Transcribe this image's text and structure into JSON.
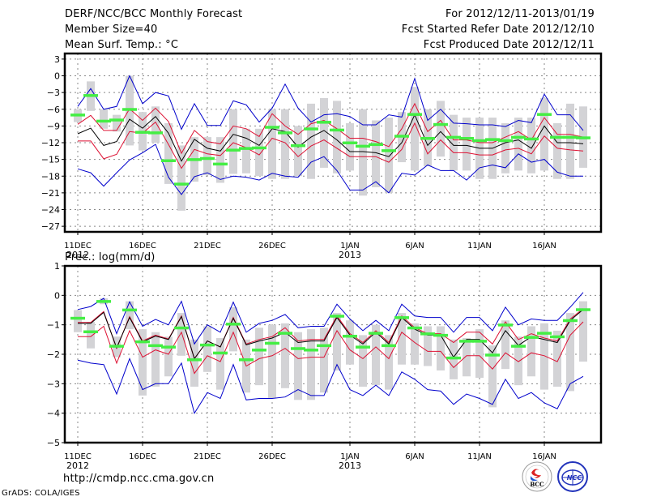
{
  "header": {
    "title": "DERF/NCC/BCC Monthly Forecast",
    "member_size": "Member Size=40",
    "variable_label": "Mean Surf. Temp.: °C",
    "for_period": "For 2012/12/11-2013/01/19",
    "start_date": "Fcst Started Refer Date 2012/12/10",
    "produced_date": "Fcst Produced Date 2012/12/11"
  },
  "footer": {
    "url": "http://cmdp.ncc.cma.gov.cn",
    "credit": "GrADS: COLA/IGES",
    "logos": [
      "BCC",
      "NCC"
    ]
  },
  "colors": {
    "ens_max_min": "#0000cc",
    "ens_spread": "#dd1133",
    "ens_mean": "#000000",
    "member_box": "#d3d3d6",
    "marker": "#44ee44"
  },
  "chart_data": [
    {
      "type": "line",
      "title": "Mean Surf. Temp.: °C",
      "xlabel": "",
      "ylabel": "°C",
      "ylim": [
        -28,
        4
      ],
      "yticks": [
        3,
        0,
        -3,
        -6,
        -9,
        -12,
        -15,
        -18,
        -21,
        -24,
        -27
      ],
      "grid": true,
      "x_start": "2012-12-11",
      "n_days": 40,
      "xtick_labels": [
        {
          "day_index": 0,
          "label": "11DEC",
          "sub": "2012"
        },
        {
          "day_index": 5,
          "label": "16DEC",
          "sub": ""
        },
        {
          "day_index": 10,
          "label": "21DEC",
          "sub": ""
        },
        {
          "day_index": 15,
          "label": "26DEC",
          "sub": ""
        },
        {
          "day_index": 21,
          "label": "1JAN",
          "sub": "2013"
        },
        {
          "day_index": 26,
          "label": "6JAN",
          "sub": ""
        },
        {
          "day_index": 31,
          "label": "11JAN",
          "sub": ""
        },
        {
          "day_index": 36,
          "label": "16JAN",
          "sub": ""
        }
      ],
      "series": [
        {
          "name": "ensemble max",
          "color_key": "ens_max_min",
          "values": [
            -5.5,
            -2.3,
            -6,
            -5.5,
            0,
            -5,
            -3,
            -3.6,
            -9.6,
            -5,
            -8.9,
            -8.9,
            -4.5,
            -5.2,
            -8.3,
            -5.8,
            -1.5,
            -5.8,
            -8.3,
            -7,
            -6.8,
            -7.3,
            -8.8,
            -8.8,
            -7,
            -7.4,
            -0.5,
            -8,
            -6,
            -8.5,
            -8.6,
            -8.8,
            -8.8,
            -9.1,
            -8,
            -8.4,
            -3.3,
            -7,
            -7,
            -9.8
          ],
          "values_note": "day-ordered daily ensemble maximum"
        },
        {
          "name": "upper spread",
          "color_key": "ens_spread",
          "values": [
            -8.7,
            -7.1,
            -9.8,
            -9.8,
            -5.9,
            -8,
            -5.8,
            -8.2,
            -13.9,
            -9.8,
            -11.8,
            -12.2,
            -9,
            -9.5,
            -10.9,
            -6.8,
            -9,
            -10.5,
            -8.6,
            -8,
            -9.5,
            -11.2,
            -11.2,
            -11.8,
            -12.7,
            -9.5,
            -5,
            -10,
            -8,
            -11.5,
            -11.5,
            -12,
            -12,
            -11,
            -10,
            -11.5,
            -7.5,
            -10.5,
            -10.5,
            -11
          ],
          "values_note": "mean + spread"
        },
        {
          "name": "ensemble mean",
          "color_key": "ens_mean",
          "values": [
            -10.4,
            -9.4,
            -12.5,
            -11.8,
            -7.8,
            -9.4,
            -7.3,
            -10.3,
            -15.3,
            -11.4,
            -13,
            -13.5,
            -10.5,
            -11.2,
            -12.5,
            -9.5,
            -10,
            -12.8,
            -11,
            -9.8,
            -11.5,
            -13.6,
            -13.6,
            -13.8,
            -14.5,
            -12,
            -7,
            -12.5,
            -10,
            -12.5,
            -12.5,
            -13,
            -13,
            -12,
            -11.5,
            -13,
            -9,
            -12,
            -12,
            -12.2
          ]
        },
        {
          "name": "lower spread",
          "color_key": "ens_spread",
          "values": [
            -11.7,
            -11.7,
            -14.9,
            -14.1,
            -10,
            -10.3,
            -8.3,
            -12.3,
            -16.6,
            -13.2,
            -14,
            -14.3,
            -12,
            -12.9,
            -14.2,
            -11.2,
            -12,
            -14.5,
            -12.6,
            -11.5,
            -13,
            -14.5,
            -14.5,
            -14.5,
            -15.5,
            -13.2,
            -8.5,
            -14,
            -11.5,
            -13.8,
            -13.8,
            -14.2,
            -14.2,
            -13.3,
            -13,
            -14,
            -10.8,
            -13,
            -13.3,
            -13.5
          ]
        },
        {
          "name": "ensemble min",
          "color_key": "ens_max_min",
          "values": [
            -16.7,
            -17.4,
            -19.8,
            -17.4,
            -15.1,
            -13.8,
            -12.3,
            -18.2,
            -21.3,
            -18.1,
            -17.4,
            -18.6,
            -18,
            -18.2,
            -18.7,
            -17.5,
            -18,
            -18.2,
            -15.5,
            -14.5,
            -17,
            -20.5,
            -20.5,
            -19,
            -21,
            -17.5,
            -17.8,
            -16,
            -17,
            -17,
            -18.7,
            -16.5,
            -16,
            -16.5,
            -14,
            -15.5,
            -15,
            -17.3,
            -18,
            -18
          ]
        }
      ],
      "boxes": {
        "note": "grey bars: member range (low, high) per day; green marker = observed/reference value",
        "low": [
          -8.3,
          -6.3,
          -9.5,
          -10,
          -12.5,
          -13.4,
          -12,
          -19.4,
          -24.2,
          -19,
          -17.8,
          -19.2,
          -17.6,
          -17.5,
          -18,
          -18.5,
          -18.5,
          -18,
          -18.5,
          -16.5,
          -17.5,
          -17,
          -21.5,
          -20,
          -21,
          -15.5,
          -17,
          -16.2,
          -14.5,
          -17,
          -17,
          -18.5,
          -18.5,
          -17.5,
          -17,
          -17.5,
          -17,
          -18.5,
          -18.5,
          -16.5
        ],
        "high": [
          -6,
          -1,
          -6,
          -7,
          0,
          -6.5,
          -5.5,
          -8.5,
          -12.5,
          -11,
          -11,
          -11,
          -6,
          -9.5,
          -9.5,
          -6,
          -6,
          -9,
          -5,
          -4,
          -4.5,
          -8.5,
          -6,
          -8,
          -7.5,
          -6.5,
          -2,
          -6,
          -4.5,
          -7,
          -7.5,
          -7.5,
          -7.5,
          -8.5,
          -7.5,
          -7.5,
          -4,
          -8.5,
          -5,
          -5.5
        ],
        "marker": [
          -7,
          -3.5,
          -8.1,
          -7.9,
          -6,
          -10.1,
          -10.2,
          -15.2,
          -19.4,
          -15,
          -14.8,
          -15.8,
          -13.3,
          -13,
          -12.9,
          -9.2,
          -10.2,
          -12.5,
          -9.5,
          -8.3,
          -9.7,
          -12,
          -12.6,
          -12.3,
          -13.4,
          -10.8,
          -6.9,
          -11.2,
          -8.7,
          -11,
          -11.2,
          -11.6,
          -11.4,
          -11.6,
          -11,
          -11.3,
          -6.9,
          -11,
          -11,
          -11.1
        ]
      }
    },
    {
      "type": "line",
      "title": "Prec.: log(mm/d)",
      "xlabel": "",
      "ylabel": "log(mm/d)",
      "ylim": [
        -5,
        1
      ],
      "yticks": [
        1,
        0,
        -1,
        -2,
        -3,
        -4,
        -5
      ],
      "grid": true,
      "x_start": "2012-12-11",
      "n_days": 40,
      "xtick_labels": [
        {
          "day_index": 0,
          "label": "11DEC",
          "sub": "2012"
        },
        {
          "day_index": 5,
          "label": "16DEC",
          "sub": ""
        },
        {
          "day_index": 10,
          "label": "21DEC",
          "sub": ""
        },
        {
          "day_index": 15,
          "label": "26DEC",
          "sub": ""
        },
        {
          "day_index": 21,
          "label": "1JAN",
          "sub": "2013"
        },
        {
          "day_index": 26,
          "label": "6JAN",
          "sub": ""
        },
        {
          "day_index": 31,
          "label": "11JAN",
          "sub": ""
        },
        {
          "day_index": 36,
          "label": "16JAN",
          "sub": ""
        }
      ],
      "series": [
        {
          "name": "ensemble max",
          "color_key": "ens_max_min",
          "values": [
            -0.48,
            -0.38,
            -0.1,
            -1.3,
            -0.22,
            -1.05,
            -0.82,
            -1,
            -0.2,
            -1.65,
            -1,
            -1.25,
            -0.23,
            -1.25,
            -0.95,
            -0.85,
            -0.65,
            -1.1,
            -1.05,
            -1.05,
            -0.3,
            -0.8,
            -1.2,
            -0.85,
            -1.2,
            -0.3,
            -0.7,
            -0.75,
            -0.75,
            -1.25,
            -0.75,
            -0.75,
            -1.2,
            -0.4,
            -1,
            -0.8,
            -0.85,
            -0.85,
            -0.4,
            0.1
          ]
        },
        {
          "name": "upper spread",
          "color_key": "ens_spread",
          "values": [
            -0.92,
            -0.92,
            -0.55,
            -1.8,
            -0.72,
            -1.55,
            -1.35,
            -1.48,
            -0.7,
            -2.15,
            -1.55,
            -1.75,
            -0.75,
            -1.65,
            -1.5,
            -1.4,
            -1.1,
            -1.55,
            -1.5,
            -1.5,
            -0.7,
            -1.3,
            -1.6,
            -1.2,
            -1.6,
            -0.7,
            -1.1,
            -1.3,
            -1.3,
            -1.6,
            -1.25,
            -1.25,
            -1.65,
            -0.9,
            -1.5,
            -1.3,
            -1.45,
            -1.55,
            -0.8,
            -0.45
          ]
        },
        {
          "name": "ensemble mean",
          "color_key": "ens_mean",
          "values": [
            -0.95,
            -0.95,
            -0.58,
            -1.78,
            -0.75,
            -1.58,
            -1.38,
            -1.5,
            -0.72,
            -2.15,
            -1.55,
            -1.75,
            -0.78,
            -1.68,
            -1.55,
            -1.45,
            -1.25,
            -1.6,
            -1.55,
            -1.55,
            -0.75,
            -1.35,
            -1.65,
            -1.25,
            -1.65,
            -0.75,
            -1.15,
            -1.35,
            -1.35,
            -2.1,
            -1.5,
            -1.5,
            -1.95,
            -1.2,
            -1.7,
            -1.4,
            -1.5,
            -1.6,
            -0.85,
            -0.48
          ]
        },
        {
          "name": "lower spread",
          "color_key": "ens_spread",
          "values": [
            -1.4,
            -1.4,
            -1.05,
            -2.3,
            -1.2,
            -2.1,
            -1.85,
            -2,
            -1.25,
            -2.65,
            -2.05,
            -2.25,
            -1.25,
            -2.4,
            -2.15,
            -2.05,
            -1.8,
            -2.15,
            -2.1,
            -2.1,
            -1.2,
            -1.85,
            -2.15,
            -1.75,
            -2.15,
            -1.25,
            -1.6,
            -1.9,
            -1.9,
            -2.45,
            -2.05,
            -2.05,
            -2.5,
            -1.95,
            -2.25,
            -1.95,
            -2.05,
            -2.25,
            -1.35,
            -0.9
          ]
        },
        {
          "name": "ensemble min",
          "color_key": "ens_max_min",
          "values": [
            -2.2,
            -2.3,
            -2.35,
            -3.35,
            -2.15,
            -3.2,
            -3,
            -3,
            -2.3,
            -4,
            -3.3,
            -3.5,
            -2.35,
            -3.55,
            -3.5,
            -3.5,
            -3.45,
            -3.2,
            -3.4,
            -3.4,
            -2.35,
            -3.2,
            -3.4,
            -3.05,
            -3.4,
            -2.6,
            -2.85,
            -3.2,
            -3.25,
            -3.7,
            -3.35,
            -3.5,
            -3.7,
            -2.85,
            -3.5,
            -3.3,
            -3.65,
            -3.85,
            -3,
            -2.75
          ]
        }
      ],
      "boxes": {
        "note": "grey bars: member range (low, high) per day; green marker = observed/reference value",
        "low": [
          -1.25,
          -1.8,
          -0.3,
          -2.1,
          -1.15,
          -3.4,
          -3.1,
          -2.75,
          -2.05,
          -3.1,
          -2.6,
          -3.2,
          -1.9,
          -3.3,
          -3.05,
          -3.5,
          -3.15,
          -3.55,
          -3.55,
          -3.3,
          -2.55,
          -2.35,
          -3.1,
          -3.05,
          -3.2,
          -2.35,
          -2.35,
          -2.4,
          -2.55,
          -2.85,
          -2.75,
          -2.8,
          -3.8,
          -2.5,
          -3.05,
          -2.75,
          -3.2,
          -3.1,
          -3.25,
          -2.25
        ],
        "high": [
          -0.5,
          -0.9,
          -0.1,
          -1.4,
          -0.2,
          -1.15,
          -1.25,
          -1.4,
          -0.6,
          -1.5,
          -1.05,
          -1.45,
          -0.4,
          -1.5,
          -1.1,
          -1,
          -0.95,
          -1.25,
          -1.15,
          -1.1,
          -0.6,
          -0.85,
          -1.35,
          -1,
          -1.35,
          -0.6,
          -0.95,
          -1.05,
          -1.05,
          -1.5,
          -1.45,
          -1.15,
          -1.7,
          -0.85,
          -1.4,
          -1.05,
          -0.95,
          -1.2,
          -0.6,
          -0.2
        ],
        "marker": [
          -0.77,
          -1.23,
          -0.2,
          -1.72,
          -0.49,
          -1.57,
          -1.7,
          -1.75,
          -1.1,
          -2.18,
          -1.68,
          -1.95,
          -0.97,
          -2.18,
          -1.85,
          -1.62,
          -1.28,
          -1.8,
          -1.85,
          -1.7,
          -0.7,
          -1.38,
          -1.75,
          -1.28,
          -1.7,
          -0.75,
          -1.1,
          -1.3,
          -1.35,
          -2.12,
          -1.55,
          -1.55,
          -2.02,
          -1.0,
          -1.72,
          -1.42,
          -1.28,
          -1.4,
          -0.85,
          -0.48
        ]
      }
    }
  ]
}
